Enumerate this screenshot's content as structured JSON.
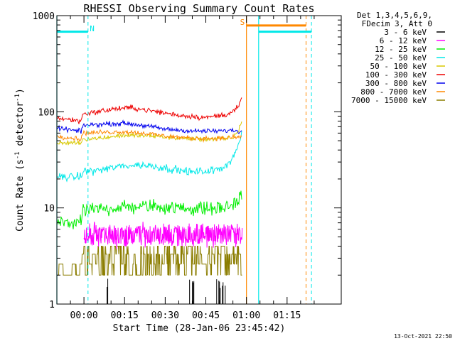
{
  "colors": {
    "black": "#000000",
    "magenta": "#ff00ff",
    "green": "#00ee00",
    "cyan": "#00ffff",
    "yellow": "#d8c800",
    "red": "#ee0000",
    "blue": "#0000ee",
    "orange": "#ff8800",
    "olive": "#8b7d00"
  },
  "chart_data": {
    "type": "line",
    "title": "RHESSI Observing Summary Count Rates",
    "xlabel": "Start Time (28-Jan-06 23:45:42)",
    "ylabel_parts": [
      "Count Rate (s",
      "-1",
      " detector",
      "-1",
      ")"
    ],
    "yscale": "log",
    "ylim": [
      1,
      1000
    ],
    "xlim_minutes": [
      -10,
      95
    ],
    "y_ticks": [
      {
        "value": 1,
        "label": "1"
      },
      {
        "value": 10,
        "label": "10"
      },
      {
        "value": 100,
        "label": "100"
      },
      {
        "value": 1000,
        "label": "1000"
      }
    ],
    "x_ticks": [
      {
        "value": 0,
        "label": "00:00"
      },
      {
        "value": 15,
        "label": "00:15"
      },
      {
        "value": 30,
        "label": "00:30"
      },
      {
        "value": 45,
        "label": "00:45"
      },
      {
        "value": 60,
        "label": "01:00"
      },
      {
        "value": 75,
        "label": "01:15"
      }
    ],
    "legend_header": [
      "Det 1,3,4,5,6,9,",
      "FDecim 3, Att 0"
    ],
    "timestamp": "13-Oct-2021 22:50",
    "series": [
      {
        "name": "3 - 6 keV",
        "color": "#000000",
        "kind": "spikes",
        "segments": [
          [
            8,
            10
          ],
          [
            39,
            41
          ],
          [
            49,
            53
          ]
        ],
        "value": 1.4
      },
      {
        "name": "6 - 12 keV",
        "color": "#ff00ff",
        "kind": "band",
        "segments": [
          [
            0,
            58.5
          ]
        ],
        "low": 4.5,
        "high": 6.0,
        "noise": 0.08
      },
      {
        "name": "12 - 25 keV",
        "color": "#00ee00",
        "kind": "trace",
        "segments": [
          [
            -10,
            58.5
          ]
        ],
        "x": [
          -10,
          -1,
          -0.5,
          5,
          15,
          25,
          35,
          45,
          52,
          55,
          57,
          58.5
        ],
        "y": [
          7.0,
          7.0,
          9.3,
          9.7,
          10.2,
          10.4,
          10.0,
          9.8,
          10.0,
          11.0,
          12.0,
          13.5
        ],
        "noise": 0.09
      },
      {
        "name": "25 - 50 keV",
        "color": "#00e8e8",
        "kind": "trace",
        "segments": [
          [
            -10,
            58.5
          ]
        ],
        "x": [
          -10,
          -1,
          -0.5,
          5,
          15,
          22,
          30,
          40,
          48,
          52,
          55,
          57,
          58.5
        ],
        "y": [
          21,
          21,
          24,
          24.5,
          27.5,
          28,
          26,
          23.5,
          24.5,
          27,
          33,
          45,
          60
        ],
        "noise": 0.05
      },
      {
        "name": "50 - 100 keV",
        "color": "#d8c800",
        "kind": "trace",
        "segments": [
          [
            -10,
            58.5
          ]
        ],
        "x": [
          -10,
          -1,
          -0.5,
          5,
          15,
          25,
          35,
          45,
          52,
          55,
          57,
          58.5
        ],
        "y": [
          47,
          48,
          52,
          53,
          57,
          56,
          53,
          52,
          52,
          54,
          62,
          85
        ],
        "noise": 0.03
      },
      {
        "name": "100 - 300 keV",
        "color": "#ee0000",
        "kind": "trace",
        "segments": [
          [
            -10,
            58.5
          ]
        ],
        "x": [
          -10,
          -1,
          -0.5,
          5,
          12,
          18,
          25,
          35,
          45,
          52,
          55,
          57,
          58.5
        ],
        "y": [
          86,
          80,
          95,
          100,
          108,
          110,
          102,
          92,
          87,
          93,
          100,
          112,
          140
        ],
        "noise": 0.035
      },
      {
        "name": "300 - 800 keV",
        "color": "#0000ee",
        "kind": "trace",
        "segments": [
          [
            -10,
            58.5
          ]
        ],
        "x": [
          -10,
          -1,
          -0.5,
          5,
          15,
          22,
          30,
          40,
          50,
          55,
          58.5
        ],
        "y": [
          68,
          62,
          72,
          74,
          76,
          72,
          66,
          63,
          63,
          64,
          62
        ],
        "noise": 0.03
      },
      {
        "name": "800 - 7000 keV",
        "color": "#ff8800",
        "kind": "trace",
        "segments": [
          [
            -10,
            58.5
          ]
        ],
        "x": [
          -10,
          -1,
          -0.5,
          5,
          15,
          22,
          30,
          40,
          50,
          55,
          58.5
        ],
        "y": [
          56,
          52,
          60,
          61,
          62,
          60,
          56,
          53,
          53,
          54,
          55
        ],
        "noise": 0.03
      },
      {
        "name": "7000 - 15000 keV",
        "color": "#8b7d00",
        "kind": "steps",
        "segments": [
          [
            -10,
            58.5
          ]
        ],
        "levels": [
          2.0,
          2.6,
          3.3,
          4.0
        ],
        "noise": 0
      }
    ],
    "annotations": {
      "night_bars": [
        {
          "color": "#00e8e8",
          "y": 680,
          "x_start": -10,
          "x_end": 1.5
        },
        {
          "color": "#00e8e8",
          "y": 680,
          "x_start": 64.5,
          "x_end": 84
        }
      ],
      "saa_bar": {
        "color": "#ff8800",
        "y": 790,
        "x_start": 60,
        "x_end": 82
      },
      "solid_lines": [
        {
          "x": -10,
          "color": "#00e8e8"
        },
        {
          "x": 60,
          "color": "#ff8800"
        },
        {
          "x": 64.5,
          "color": "#00e8e8"
        }
      ],
      "dashed_lines": [
        {
          "x": 1.5,
          "color": "#00e8e8"
        },
        {
          "x": 82,
          "color": "#ff8800"
        },
        {
          "x": 84,
          "color": "#00e8e8"
        }
      ],
      "labels": [
        {
          "text": "N",
          "x": 3,
          "y": 690,
          "color": "#00e8e8"
        },
        {
          "text": "S",
          "x": 58.5,
          "y": 800,
          "color": "#ff8800"
        }
      ]
    }
  }
}
